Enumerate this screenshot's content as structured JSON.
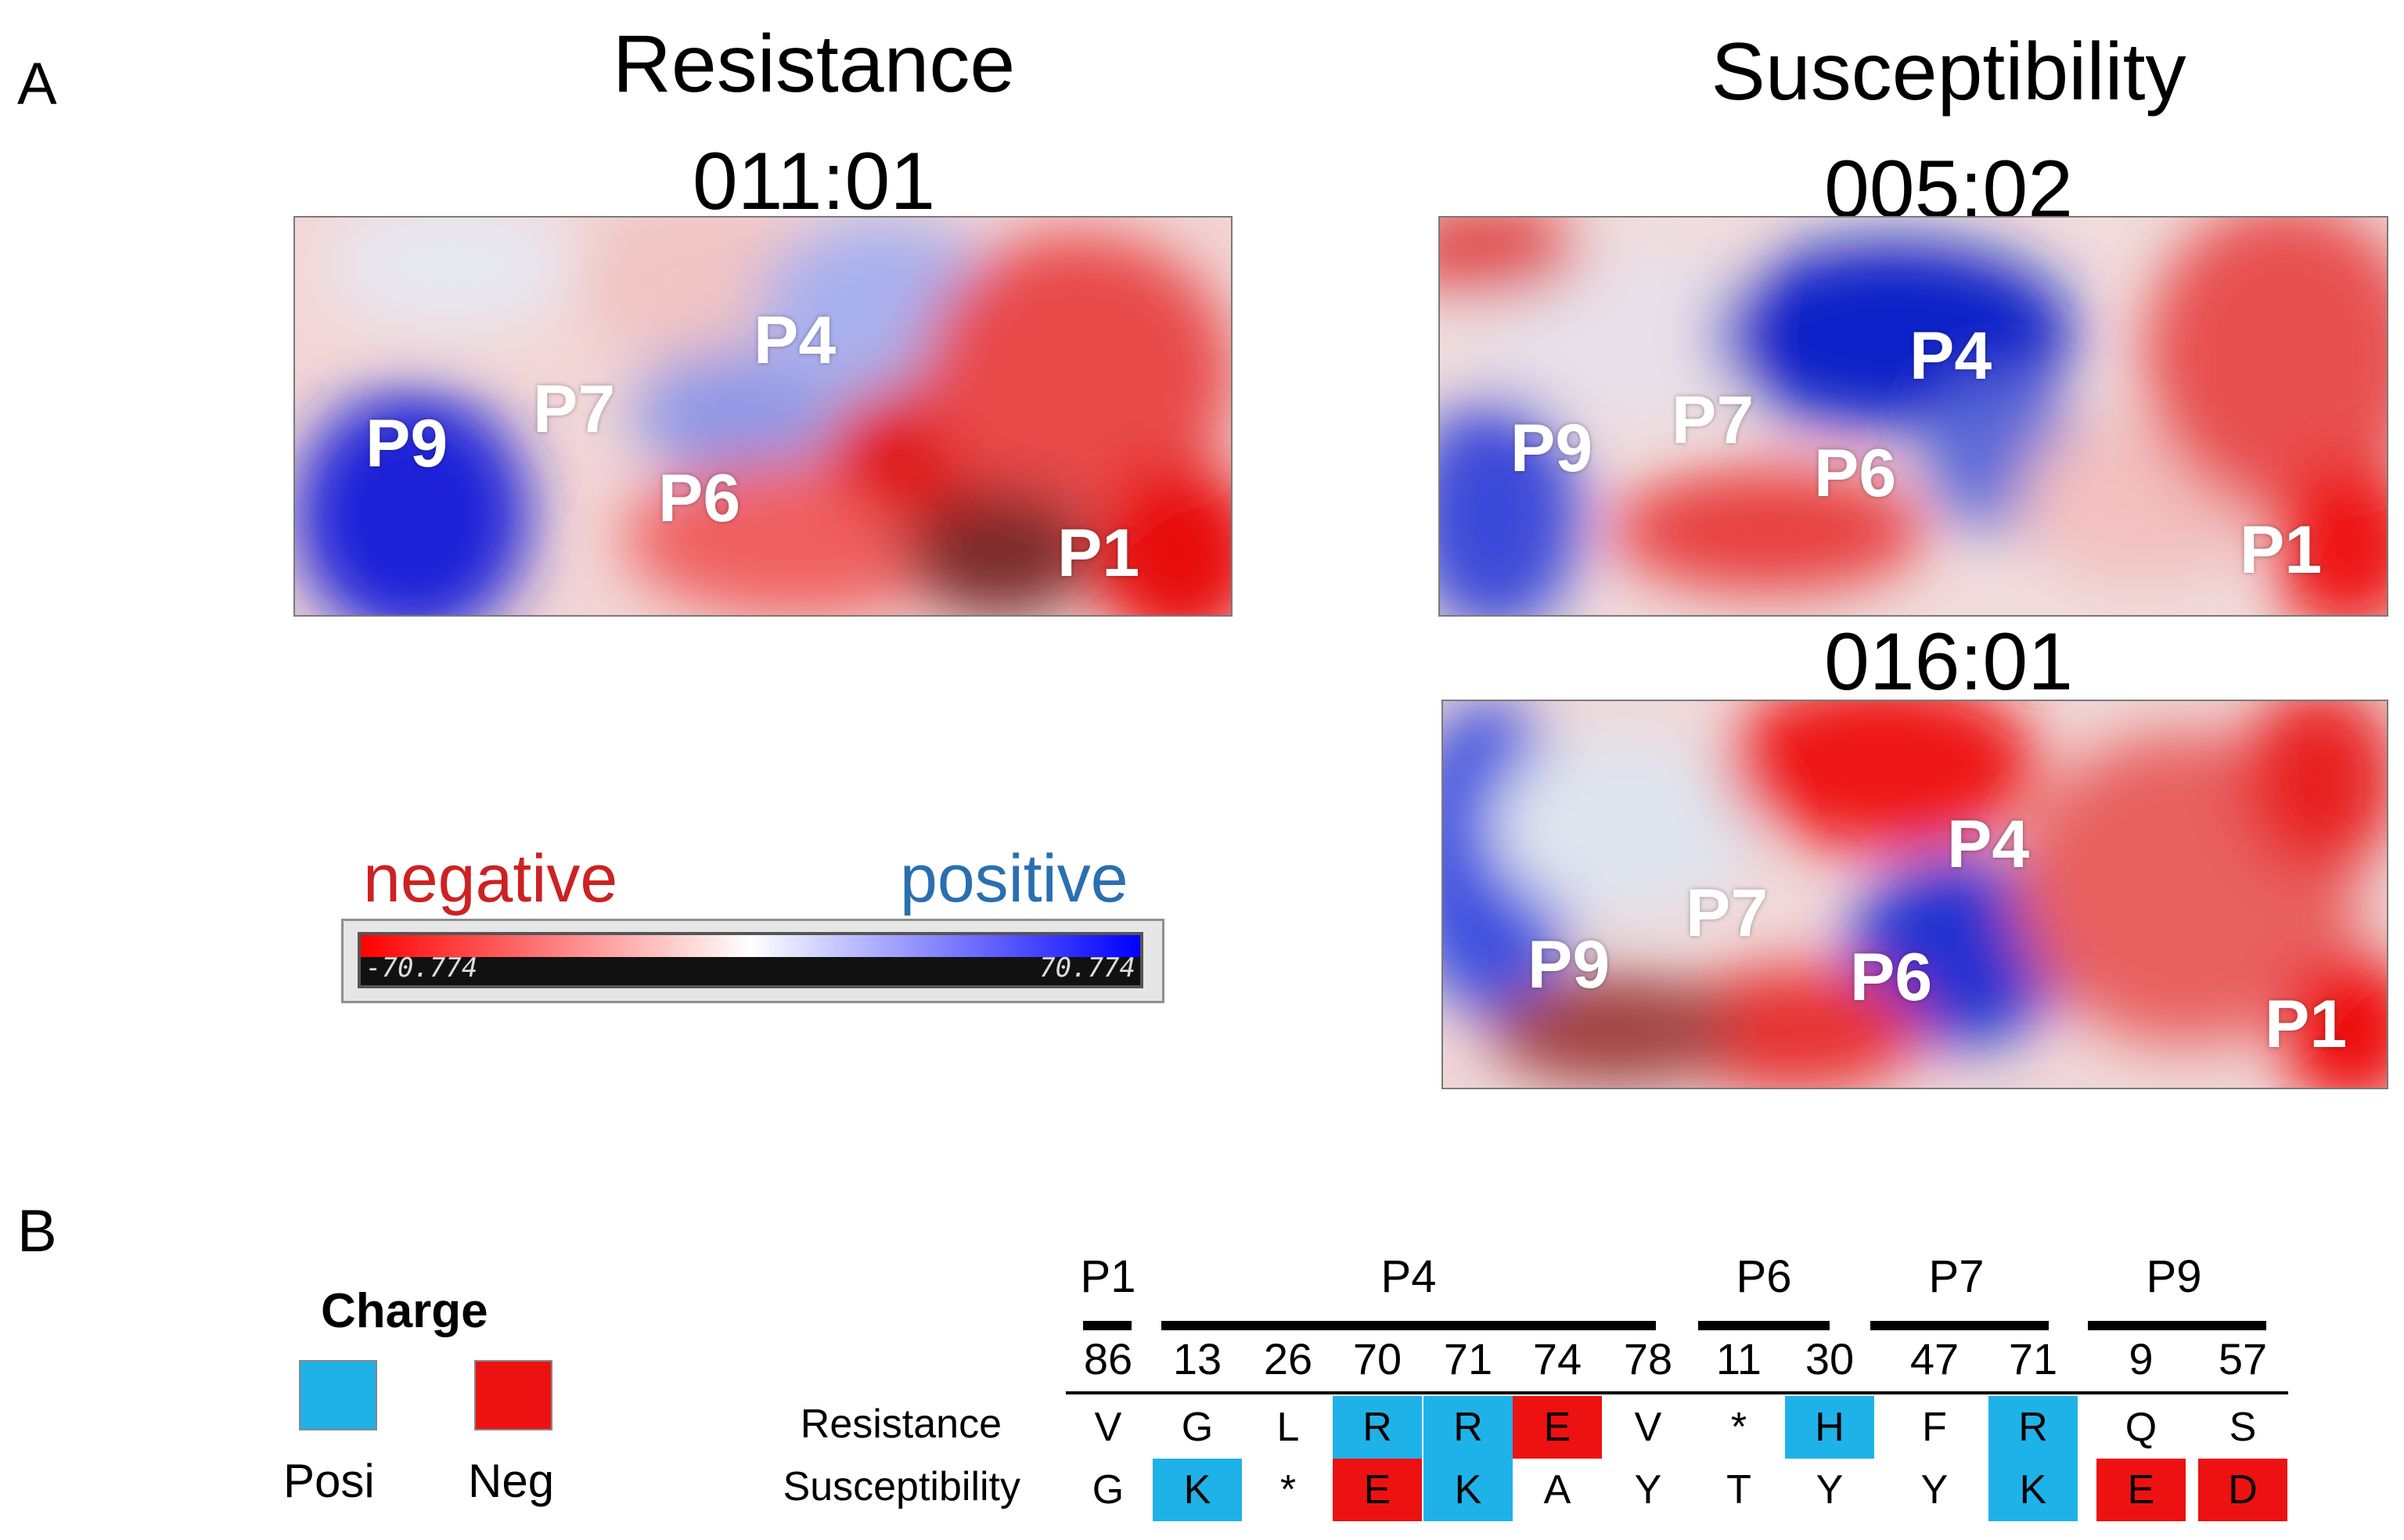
{
  "panel_a": {
    "letter": "A",
    "left_heading": "Resistance",
    "right_heading": "Susceptibility",
    "structures": [
      {
        "allele": "011:01",
        "pockets": [
          "P9",
          "P7",
          "P4",
          "P6",
          "P1"
        ]
      },
      {
        "allele": "005:02",
        "pockets": [
          "P9",
          "P7",
          "P4",
          "P6",
          "P1"
        ]
      },
      {
        "allele": "016:01",
        "pockets": [
          "P9",
          "P7",
          "P4",
          "P6",
          "P1"
        ]
      }
    ],
    "legend": {
      "negative_label": "negative",
      "positive_label": "positive",
      "min_value": "-70.774",
      "max_value": "70.774",
      "negative_color": "#ee1111",
      "positive_color": "#2a6fb0"
    }
  },
  "panel_b": {
    "letter": "B",
    "charge_legend": {
      "title": "Charge",
      "items": [
        {
          "label": "Posi",
          "color": "#1fb2e8"
        },
        {
          "label": "Neg",
          "color": "#ee1111"
        }
      ]
    },
    "pocket_groups": [
      "P1",
      "P4",
      "P6",
      "P7",
      "P9"
    ],
    "positions": [
      "86",
      "13",
      "26",
      "70",
      "71",
      "74",
      "78",
      "11",
      "30",
      "47",
      "71",
      "9",
      "57"
    ],
    "rows": [
      {
        "label": "Resistance",
        "residues": [
          "V",
          "G",
          "L",
          "R",
          "R",
          "E",
          "V",
          "*",
          "H",
          "F",
          "R",
          "Q",
          "S"
        ],
        "charges": [
          "",
          "",
          "",
          "pos",
          "pos",
          "neg",
          "",
          "",
          "pos",
          "",
          "pos",
          "",
          ""
        ]
      },
      {
        "label": "Susceptibility",
        "residues": [
          "G",
          "K",
          "*",
          "E",
          "K",
          "A",
          "Y",
          "T",
          "Y",
          "Y",
          "K",
          "E",
          "D"
        ],
        "charges": [
          "",
          "pos",
          "",
          "neg",
          "pos",
          "",
          "",
          "",
          "",
          "",
          "pos",
          "neg",
          "neg"
        ]
      }
    ]
  }
}
